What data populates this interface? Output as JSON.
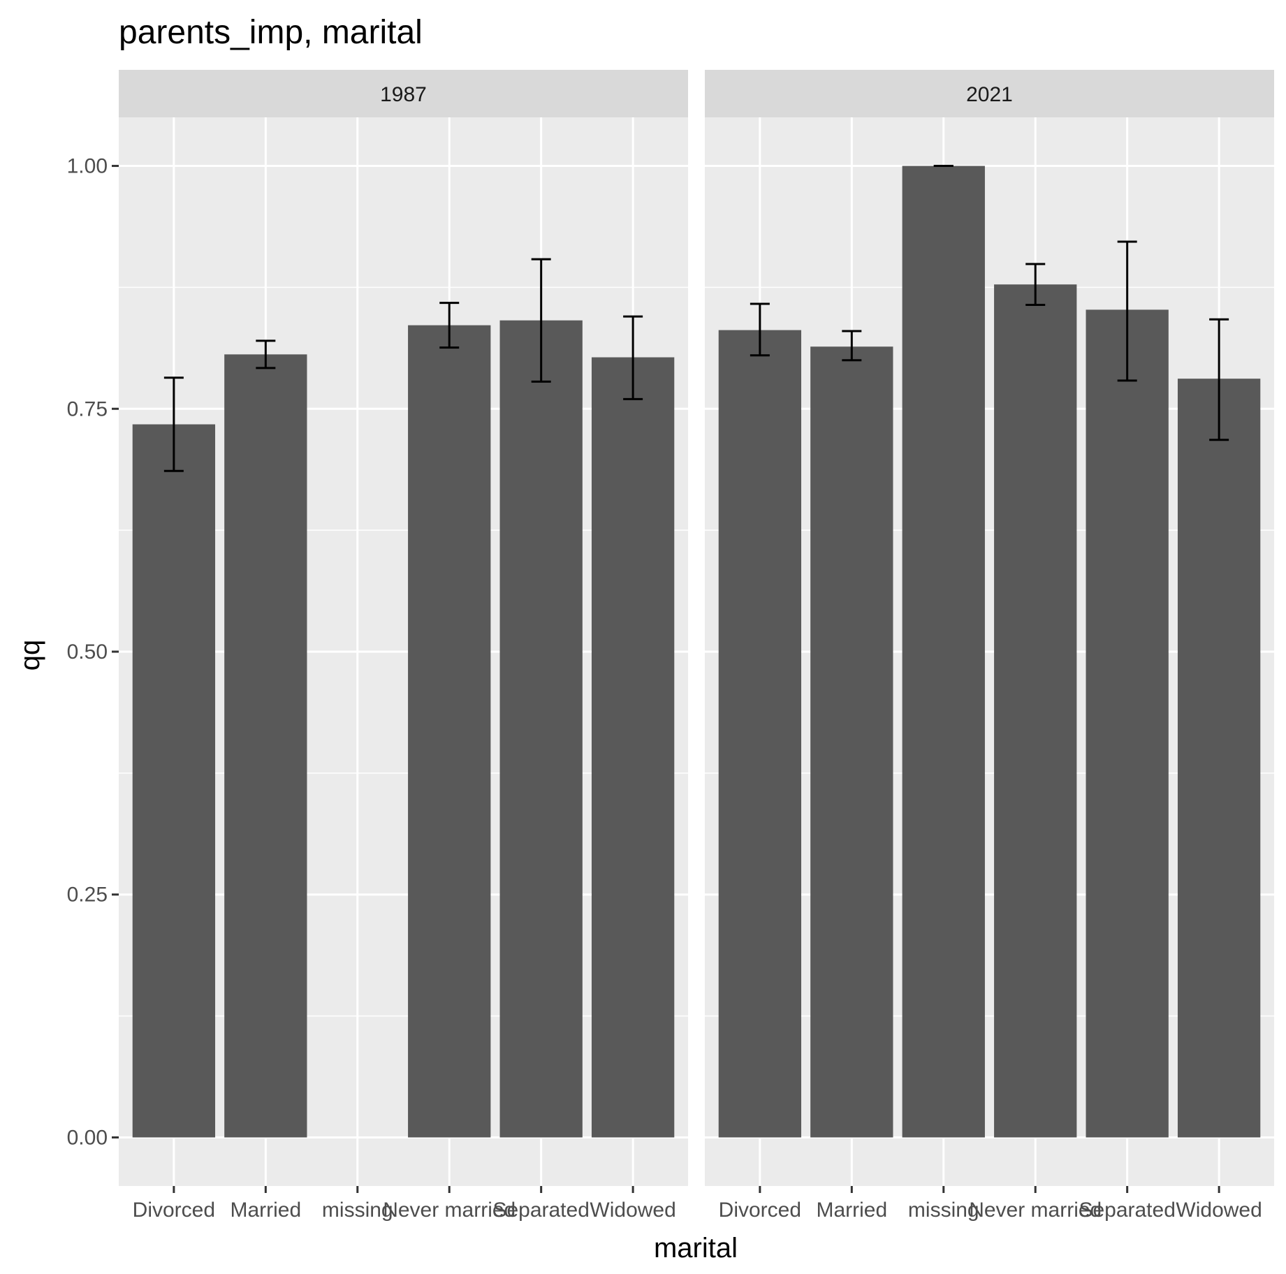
{
  "chart_data": {
    "type": "bar",
    "title": "parents_imp, marital",
    "xlabel": "marital",
    "ylabel": "qq",
    "ylim": [
      -0.05,
      1.05
    ],
    "yticks": [
      0.0,
      0.25,
      0.5,
      0.75,
      1.0
    ],
    "ytick_labels": [
      "0.00",
      "0.25",
      "0.50",
      "0.75",
      "1.00"
    ],
    "categories": [
      "Divorced",
      "Married",
      "missing",
      "Never married",
      "Separated",
      "Widowed"
    ],
    "grid": true,
    "colors": {
      "bar": "#595959",
      "panel": "#ebebeb",
      "grid": "#ffffff",
      "strip": "#d9d9d9",
      "errorbar": "#000000"
    },
    "facets": [
      {
        "label": "1987",
        "values": [
          0.734,
          0.806,
          null,
          0.836,
          0.841,
          0.803
        ],
        "error_low": [
          0.686,
          0.792,
          null,
          0.813,
          0.778,
          0.76
        ],
        "error_high": [
          0.782,
          0.82,
          null,
          0.859,
          0.904,
          0.845
        ]
      },
      {
        "label": "2021",
        "values": [
          0.831,
          0.814,
          1.0,
          0.878,
          0.852,
          0.781
        ],
        "error_low": [
          0.805,
          0.8,
          1.0,
          0.857,
          0.779,
          0.718
        ],
        "error_high": [
          0.858,
          0.83,
          1.0,
          0.899,
          0.922,
          0.842
        ]
      }
    ]
  }
}
